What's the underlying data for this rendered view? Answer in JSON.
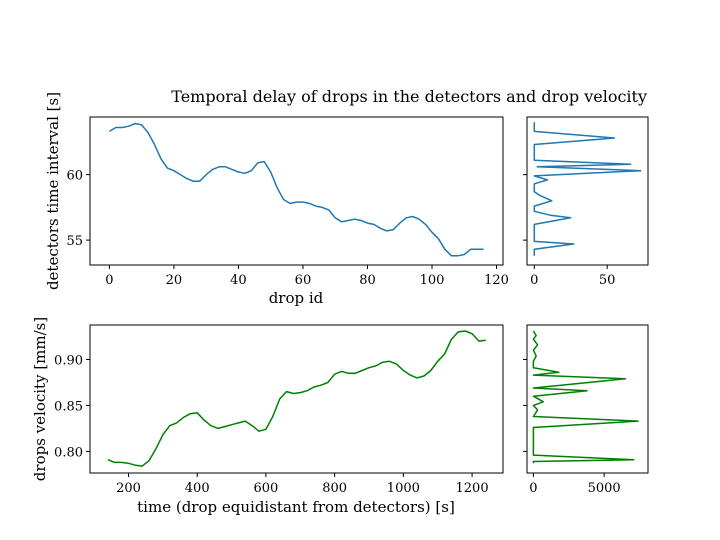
{
  "chart_data": [
    {
      "id": "delay_main",
      "type": "line",
      "title": "Temporal delay of drops in the detectors and drop velocity",
      "xlabel": "drop id",
      "ylabel": "detectors time interval [s]",
      "xlim": [
        -6,
        122
      ],
      "ylim": [
        53.1,
        64.4
      ],
      "xticks": [
        0,
        20,
        40,
        60,
        80,
        100,
        120
      ],
      "yticks": [
        55,
        60
      ],
      "color": "#1f77b4",
      "x": [
        0,
        2,
        4,
        6,
        8,
        10,
        12,
        14,
        16,
        18,
        20,
        22,
        24,
        26,
        28,
        30,
        32,
        34,
        36,
        38,
        40,
        42,
        44,
        46,
        48,
        50,
        52,
        54,
        56,
        58,
        60,
        62,
        64,
        66,
        68,
        70,
        72,
        74,
        76,
        78,
        80,
        82,
        84,
        86,
        88,
        90,
        92,
        94,
        96,
        98,
        100,
        102,
        104,
        106,
        108,
        110,
        112,
        114,
        116
      ],
      "y": [
        63.3,
        63.6,
        63.6,
        63.7,
        63.9,
        63.8,
        63.2,
        62.3,
        61.2,
        60.5,
        60.3,
        60.0,
        59.7,
        59.5,
        59.5,
        60.0,
        60.4,
        60.6,
        60.6,
        60.4,
        60.2,
        60.1,
        60.3,
        60.9,
        61.0,
        60.2,
        59.0,
        58.1,
        57.8,
        57.9,
        57.9,
        57.8,
        57.6,
        57.5,
        57.3,
        56.7,
        56.4,
        56.5,
        56.6,
        56.5,
        56.3,
        56.2,
        55.9,
        55.7,
        55.8,
        56.3,
        56.7,
        56.8,
        56.6,
        56.2,
        55.6,
        55.1,
        54.3,
        53.8,
        53.8,
        53.9,
        54.3,
        54.3,
        54.3
      ]
    },
    {
      "id": "delay_hist",
      "type": "line",
      "xlim": [
        -5,
        78
      ],
      "ylim": [
        53.1,
        64.4
      ],
      "xticks": [
        0,
        50
      ],
      "color": "#1f77b4",
      "points": [
        [
          0,
          53.8
        ],
        [
          0,
          54.3
        ],
        [
          27,
          54.7
        ],
        [
          0,
          54.9
        ],
        [
          0,
          55.3
        ],
        [
          0,
          55.8
        ],
        [
          0,
          56.2
        ],
        [
          25,
          56.7
        ],
        [
          11,
          56.9
        ],
        [
          0,
          57.2
        ],
        [
          0,
          57.6
        ],
        [
          12,
          58.0
        ],
        [
          4,
          58.4
        ],
        [
          0,
          58.7
        ],
        [
          0,
          59.0
        ],
        [
          0,
          59.3
        ],
        [
          9,
          59.6
        ],
        [
          0,
          59.9
        ],
        [
          73,
          60.3
        ],
        [
          2,
          60.6
        ],
        [
          66,
          60.8
        ],
        [
          0,
          61.1
        ],
        [
          0,
          61.5
        ],
        [
          0,
          61.9
        ],
        [
          0,
          62.3
        ],
        [
          55,
          62.8
        ],
        [
          0,
          63.3
        ],
        [
          0,
          63.7
        ],
        [
          0,
          64.0
        ]
      ]
    },
    {
      "id": "velocity_main",
      "type": "line",
      "xlabel": "time (drop equidistant from detectors) [s]",
      "ylabel": "drops velocity [mm/s]",
      "xlim": [
        88,
        1290
      ],
      "ylim": [
        0.7765,
        0.9375
      ],
      "xticks": [
        200,
        400,
        600,
        800,
        1000,
        1200
      ],
      "yticks": [
        0.8,
        0.85,
        0.9
      ],
      "color": "#008000",
      "x": [
        140,
        160,
        180,
        200,
        220,
        240,
        260,
        280,
        300,
        320,
        340,
        360,
        380,
        400,
        420,
        440,
        460,
        480,
        500,
        520,
        540,
        560,
        580,
        600,
        620,
        640,
        660,
        680,
        700,
        720,
        740,
        760,
        780,
        800,
        820,
        840,
        860,
        880,
        900,
        920,
        940,
        960,
        980,
        1000,
        1020,
        1040,
        1060,
        1080,
        1100,
        1120,
        1140,
        1160,
        1180,
        1200,
        1220,
        1240
      ],
      "y": [
        0.791,
        0.788,
        0.788,
        0.787,
        0.785,
        0.784,
        0.79,
        0.803,
        0.818,
        0.828,
        0.831,
        0.837,
        0.841,
        0.842,
        0.834,
        0.828,
        0.825,
        0.827,
        0.829,
        0.831,
        0.833,
        0.828,
        0.822,
        0.824,
        0.838,
        0.857,
        0.865,
        0.863,
        0.864,
        0.866,
        0.87,
        0.872,
        0.875,
        0.884,
        0.887,
        0.885,
        0.885,
        0.888,
        0.891,
        0.893,
        0.897,
        0.898,
        0.895,
        0.888,
        0.883,
        0.88,
        0.882,
        0.888,
        0.898,
        0.906,
        0.922,
        0.93,
        0.931,
        0.928,
        0.92,
        0.921
      ]
    },
    {
      "id": "velocity_hist",
      "type": "line",
      "xlim": [
        -450,
        8100
      ],
      "ylim": [
        0.7765,
        0.9375
      ],
      "xticks": [
        0,
        5000
      ],
      "color": "#008000",
      "points": [
        [
          0,
          0.787
        ],
        [
          0,
          0.789
        ],
        [
          7100,
          0.791
        ],
        [
          0,
          0.796
        ],
        [
          0,
          0.801
        ],
        [
          0,
          0.807
        ],
        [
          0,
          0.813
        ],
        [
          0,
          0.818
        ],
        [
          0,
          0.823
        ],
        [
          0,
          0.826
        ],
        [
          7400,
          0.833
        ],
        [
          0,
          0.838
        ],
        [
          300,
          0.845
        ],
        [
          0,
          0.85
        ],
        [
          700,
          0.854
        ],
        [
          0,
          0.86
        ],
        [
          3800,
          0.866
        ],
        [
          0,
          0.869
        ],
        [
          6500,
          0.879
        ],
        [
          0,
          0.883
        ],
        [
          1800,
          0.886
        ],
        [
          0,
          0.891
        ],
        [
          0,
          0.898
        ],
        [
          200,
          0.904
        ],
        [
          0,
          0.91
        ],
        [
          300,
          0.916
        ],
        [
          0,
          0.922
        ],
        [
          200,
          0.926
        ],
        [
          0,
          0.931
        ]
      ]
    }
  ]
}
